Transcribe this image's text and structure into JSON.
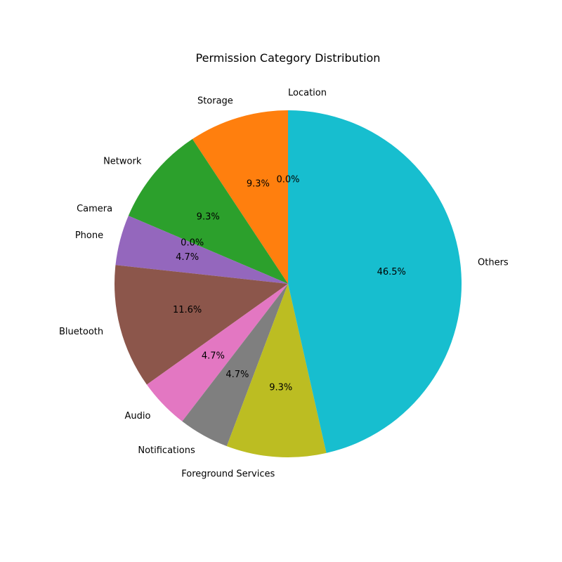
{
  "chart_data": {
    "type": "pie",
    "title": "Permission Category Distribution",
    "start_angle_deg": 90,
    "direction": "counterclockwise",
    "slices": [
      {
        "label": "Location",
        "value": 0.0,
        "pct_label": "0.0%",
        "color": "#1f77b4"
      },
      {
        "label": "Storage",
        "value": 9.3,
        "pct_label": "9.3%",
        "color": "#ff7f0e"
      },
      {
        "label": "Network",
        "value": 9.3,
        "pct_label": "9.3%",
        "color": "#2ca02c"
      },
      {
        "label": "Camera",
        "value": 0.0,
        "pct_label": "0.0%",
        "color": "#d62728"
      },
      {
        "label": "Phone",
        "value": 4.7,
        "pct_label": "4.7%",
        "color": "#9467bd"
      },
      {
        "label": "Bluetooth",
        "value": 11.6,
        "pct_label": "11.6%",
        "color": "#8c564b"
      },
      {
        "label": "Audio",
        "value": 4.7,
        "pct_label": "4.7%",
        "color": "#e377c2"
      },
      {
        "label": "Notifications",
        "value": 4.7,
        "pct_label": "4.7%",
        "color": "#7f7f7f"
      },
      {
        "label": "Foreground Services",
        "value": 9.3,
        "pct_label": "9.3%",
        "color": "#bcbd22"
      },
      {
        "label": "Others",
        "value": 46.5,
        "pct_label": "46.5%",
        "color": "#17becf"
      }
    ]
  }
}
